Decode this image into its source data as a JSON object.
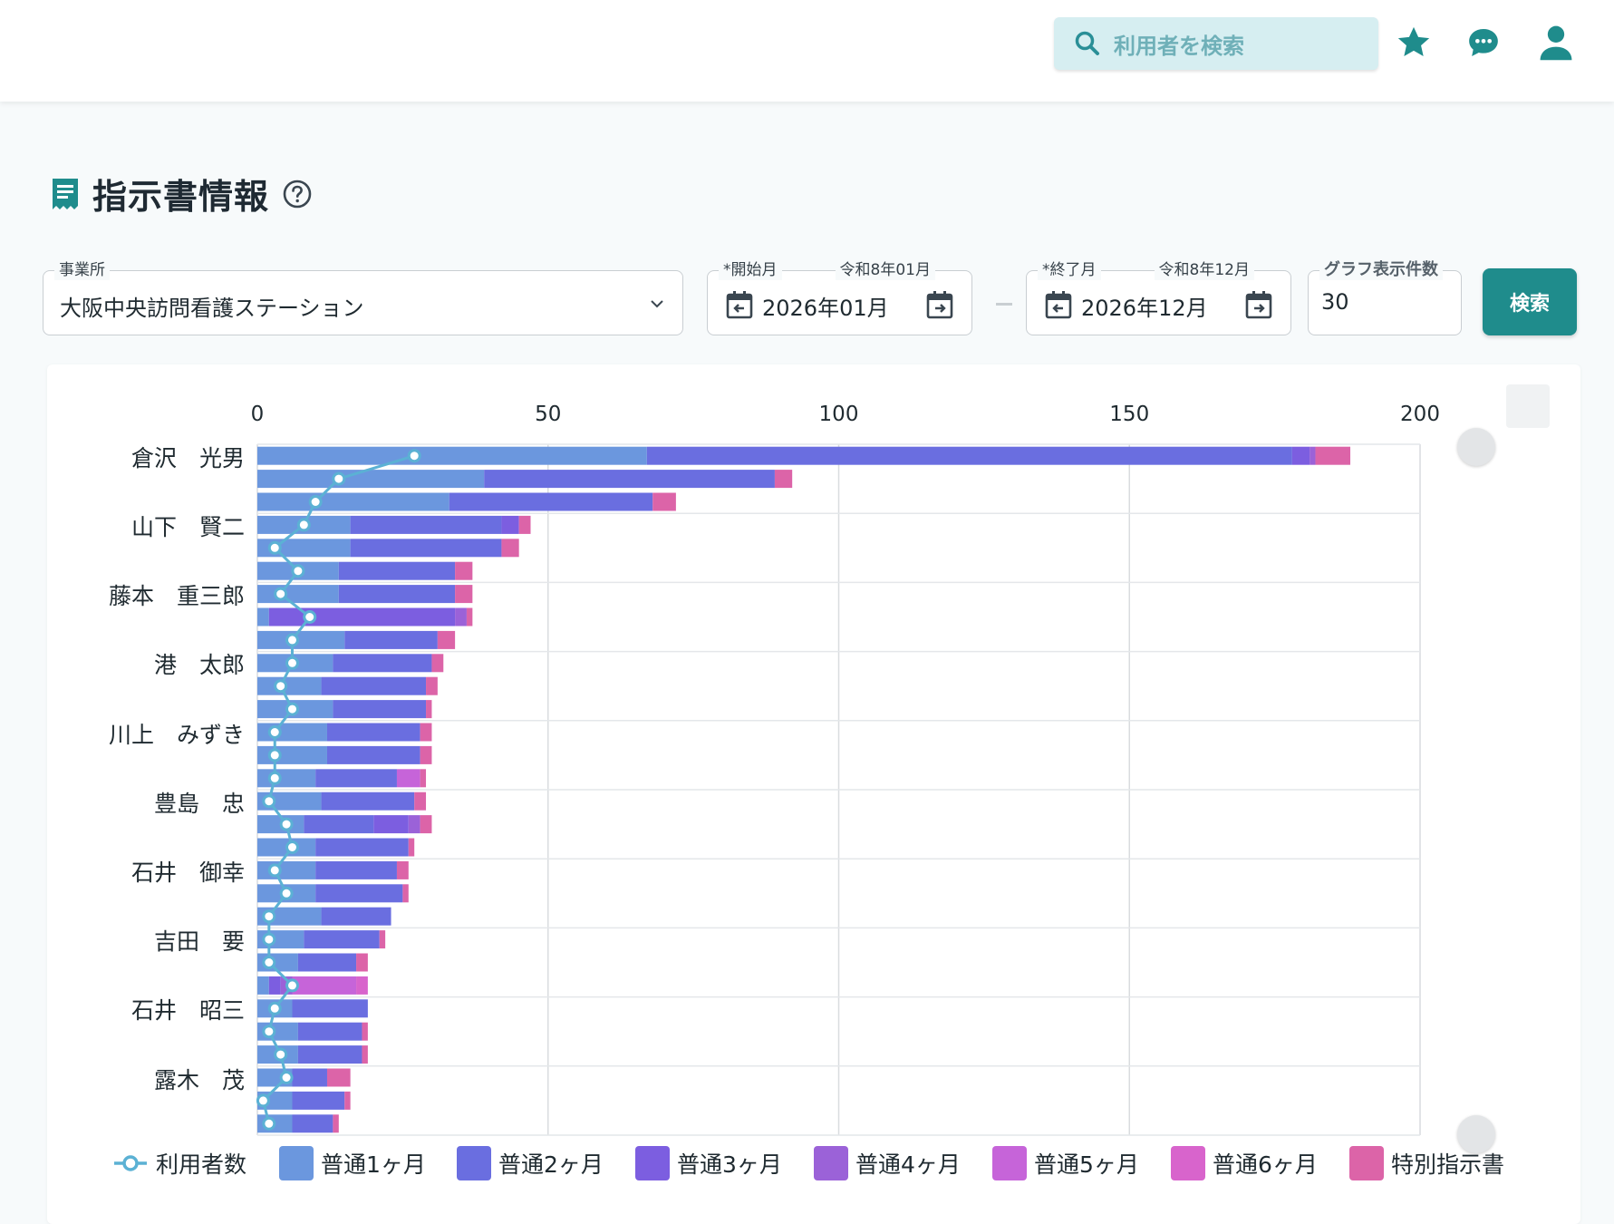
{
  "header": {
    "search_placeholder": "利用者を検索",
    "icons": [
      "search-icon",
      "star-icon",
      "chat-icon",
      "user-icon"
    ],
    "accent": "#1f8c8c"
  },
  "page": {
    "title": "指示書情報",
    "icon": "document-icon",
    "help_icon": "help-icon"
  },
  "filters": {
    "office_label": "事業所",
    "office_value": "大阪中央訪問看護ステーション",
    "start_label": "*開始月",
    "start_era": "令和8年01月",
    "start_value": "2026年01月",
    "end_label": "*終了月",
    "end_era": "令和8年12月",
    "end_value": "2026年12月",
    "count_label": "グラフ表示件数",
    "count_value": "30",
    "search_button": "検索"
  },
  "chart_data": {
    "type": "bar",
    "orientation": "horizontal",
    "stacked": true,
    "xlim": [
      0,
      200
    ],
    "x_ticks": [
      "0",
      "50",
      "100",
      "150",
      "200"
    ],
    "grid": true,
    "legend_position": "bottom",
    "y_labels_shown": [
      "倉沢　光男",
      "山下　賢二",
      "藤本　重三郎",
      "港　太郎",
      "川上　みずき",
      "豊島　忠",
      "石井　御幸",
      "吉田　要",
      "石井　昭三",
      "露木　茂"
    ],
    "series": [
      {
        "name": "普通1ヶ月",
        "color": "#6b97de",
        "values": [
          67,
          39,
          33,
          16,
          16,
          14,
          14,
          2,
          15,
          13,
          11,
          13,
          12,
          12,
          10,
          11,
          8,
          10,
          10,
          10,
          11,
          8,
          7,
          2,
          6,
          7,
          7,
          6,
          6,
          6
        ]
      },
      {
        "name": "普通2ヶ月",
        "color": "#6a6ee0",
        "values": [
          111,
          50,
          35,
          26,
          26,
          20,
          20,
          0,
          16,
          17,
          18,
          16,
          16,
          16,
          14,
          16,
          12,
          16,
          14,
          15,
          12,
          13,
          10,
          0,
          13,
          11,
          11,
          6,
          9,
          7
        ]
      },
      {
        "name": "普通3ヶ月",
        "color": "#7c5ee0",
        "values": [
          3,
          0,
          0,
          3,
          0,
          0,
          0,
          32,
          0,
          0,
          0,
          0,
          0,
          0,
          0,
          0,
          6,
          0,
          0,
          0,
          0,
          0,
          0,
          2,
          0,
          0,
          0,
          0,
          0,
          0
        ]
      },
      {
        "name": "普通4ヶ月",
        "color": "#9b62d8",
        "values": [
          1,
          0,
          0,
          0,
          0,
          0,
          0,
          2,
          0,
          0,
          0,
          0,
          0,
          0,
          0,
          0,
          2,
          0,
          0,
          0,
          0,
          0,
          0,
          2,
          0,
          0,
          0,
          0,
          0,
          0
        ]
      },
      {
        "name": "普通5ヶ月",
        "color": "#c664d9",
        "values": [
          0,
          0,
          0,
          0,
          0,
          0,
          0,
          0,
          0,
          0,
          0,
          0,
          0,
          0,
          4,
          0,
          0,
          0,
          0,
          0,
          0,
          0,
          0,
          11,
          0,
          0,
          0,
          0,
          0,
          0
        ]
      },
      {
        "name": "普通6ヶ月",
        "color": "#d864cc",
        "values": [
          0,
          0,
          0,
          0,
          0,
          0,
          0,
          0,
          0,
          0,
          0,
          0,
          0,
          0,
          0,
          0,
          0,
          0,
          0,
          0,
          0,
          0,
          0,
          2,
          0,
          0,
          0,
          0,
          0,
          0
        ]
      },
      {
        "name": "特別指示書",
        "color": "#dc64a8",
        "values": [
          6,
          3,
          4,
          2,
          3,
          3,
          3,
          1,
          3,
          2,
          2,
          1,
          2,
          2,
          1,
          2,
          2,
          1,
          2,
          1,
          0,
          1,
          2,
          0,
          0,
          1,
          1,
          4,
          1,
          1
        ]
      }
    ],
    "line": {
      "name": "利用者数",
      "color": "#5bb1d4",
      "values": [
        27,
        14,
        10,
        8,
        3,
        7,
        4,
        9,
        6,
        6,
        4,
        6,
        3,
        3,
        3,
        2,
        5,
        6,
        3,
        5,
        2,
        2,
        2,
        6,
        3,
        2,
        4,
        5,
        1,
        2
      ]
    }
  }
}
